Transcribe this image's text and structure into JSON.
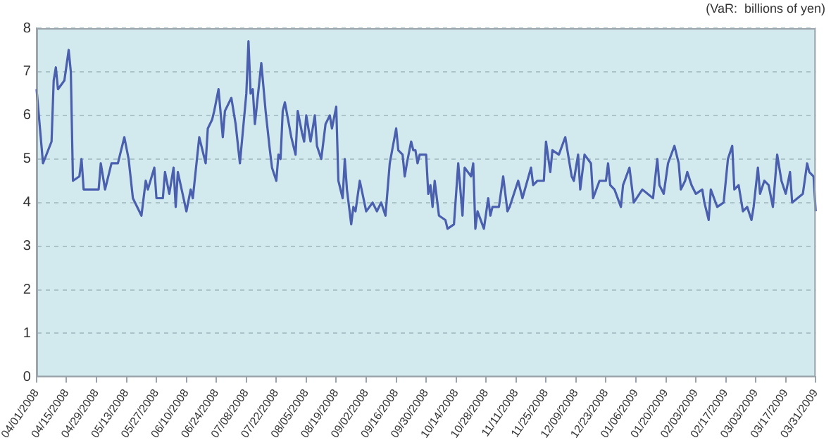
{
  "chart_data": {
    "type": "line",
    "ylabel": "(VaR:  billions of yen)",
    "x": [
      "2008-04-01",
      "2008-04-04",
      "2008-04-08",
      "2008-04-09",
      "2008-04-10",
      "2008-04-11",
      "2008-04-14",
      "2008-04-16",
      "2008-04-17",
      "2008-04-18",
      "2008-04-21",
      "2008-04-22",
      "2008-04-23",
      "2008-04-26",
      "2008-04-30",
      "2008-05-01",
      "2008-05-03",
      "2008-05-06",
      "2008-05-09",
      "2008-05-12",
      "2008-05-14",
      "2008-05-16",
      "2008-05-20",
      "2008-05-22",
      "2008-05-23",
      "2008-05-26",
      "2008-05-27",
      "2008-05-30",
      "2008-05-31",
      "2008-06-02",
      "2008-06-04",
      "2008-06-05",
      "2008-06-06",
      "2008-06-10",
      "2008-06-12",
      "2008-06-13",
      "2008-06-16",
      "2008-06-19",
      "2008-06-20",
      "2008-06-22",
      "2008-06-23",
      "2008-06-25",
      "2008-06-27",
      "2008-06-28",
      "2008-07-01",
      "2008-07-03",
      "2008-07-05",
      "2008-07-08",
      "2008-07-09",
      "2008-07-10",
      "2008-07-11",
      "2008-07-12",
      "2008-07-15",
      "2008-07-17",
      "2008-07-19",
      "2008-07-20",
      "2008-07-22",
      "2008-07-23",
      "2008-07-24",
      "2008-07-25",
      "2008-07-26",
      "2008-07-29",
      "2008-07-31",
      "2008-08-01",
      "2008-08-03",
      "2008-08-04",
      "2008-08-05",
      "2008-08-07",
      "2008-08-09",
      "2008-08-10",
      "2008-08-12",
      "2008-08-14",
      "2008-08-16",
      "2008-08-17",
      "2008-08-19",
      "2008-08-20",
      "2008-08-22",
      "2008-08-23",
      "2008-08-24",
      "2008-08-26",
      "2008-08-27",
      "2008-08-28",
      "2008-08-30",
      "2008-09-02",
      "2008-09-05",
      "2008-09-07",
      "2008-09-09",
      "2008-09-11",
      "2008-09-13",
      "2008-09-16",
      "2008-09-17",
      "2008-09-19",
      "2008-09-20",
      "2008-09-21",
      "2008-09-23",
      "2008-09-24",
      "2008-09-25",
      "2008-09-26",
      "2008-09-27",
      "2008-09-30",
      "2008-10-01",
      "2008-10-02",
      "2008-10-03",
      "2008-10-04",
      "2008-10-06",
      "2008-10-09",
      "2008-10-10",
      "2008-10-13",
      "2008-10-15",
      "2008-10-17",
      "2008-10-18",
      "2008-10-21",
      "2008-10-22",
      "2008-10-23",
      "2008-10-24",
      "2008-10-27",
      "2008-10-29",
      "2008-10-30",
      "2008-10-31",
      "2008-11-03",
      "2008-11-05",
      "2008-11-07",
      "2008-11-08",
      "2008-11-12",
      "2008-11-14",
      "2008-11-18",
      "2008-11-19",
      "2008-11-21",
      "2008-11-24",
      "2008-11-25",
      "2008-11-27",
      "2008-11-28",
      "2008-12-01",
      "2008-12-04",
      "2008-12-05",
      "2008-12-07",
      "2008-12-08",
      "2008-12-10",
      "2008-12-11",
      "2008-12-13",
      "2008-12-16",
      "2008-12-17",
      "2008-12-20",
      "2008-12-23",
      "2008-12-24",
      "2008-12-25",
      "2008-12-27",
      "2008-12-30",
      "2008-12-31",
      "2009-01-03",
      "2009-01-05",
      "2009-01-09",
      "2009-01-14",
      "2009-01-16",
      "2009-01-17",
      "2009-01-19",
      "2009-01-21",
      "2009-01-24",
      "2009-01-26",
      "2009-01-27",
      "2009-01-29",
      "2009-01-30",
      "2009-02-01",
      "2009-02-03",
      "2009-02-06",
      "2009-02-07",
      "2009-02-09",
      "2009-02-10",
      "2009-02-13",
      "2009-02-16",
      "2009-02-18",
      "2009-02-20",
      "2009-02-21",
      "2009-02-23",
      "2009-02-25",
      "2009-02-27",
      "2009-03-01",
      "2009-03-02",
      "2009-03-04",
      "2009-03-05",
      "2009-03-07",
      "2009-03-09",
      "2009-03-11",
      "2009-03-13",
      "2009-03-15",
      "2009-03-17",
      "2009-03-19",
      "2009-03-20",
      "2009-03-25",
      "2009-03-27",
      "2009-03-28",
      "2009-03-30",
      "2009-03-31"
    ],
    "series": [
      {
        "color": "#4a5fad",
        "values": [
          6.6,
          4.9,
          5.4,
          6.8,
          7.1,
          6.6,
          6.8,
          7.5,
          7.0,
          4.5,
          4.6,
          5.0,
          4.3,
          4.3,
          4.3,
          4.9,
          4.3,
          4.9,
          4.9,
          5.5,
          5.0,
          4.1,
          3.7,
          4.5,
          4.3,
          4.8,
          4.1,
          4.1,
          4.7,
          4.2,
          4.8,
          3.9,
          4.7,
          3.8,
          4.3,
          4.1,
          5.5,
          4.9,
          5.7,
          5.9,
          6.1,
          6.6,
          5.5,
          6.1,
          6.4,
          5.8,
          4.9,
          6.5,
          7.7,
          6.5,
          6.6,
          5.8,
          7.2,
          6.1,
          5.2,
          4.8,
          4.5,
          5.1,
          5.0,
          6.1,
          6.3,
          5.5,
          5.1,
          6.1,
          5.6,
          5.4,
          6.0,
          5.4,
          6.0,
          5.3,
          5.0,
          5.8,
          6.0,
          5.7,
          6.2,
          4.5,
          4.1,
          5.0,
          4.3,
          3.5,
          3.9,
          3.8,
          4.5,
          3.8,
          4.0,
          3.8,
          4.0,
          3.7,
          4.9,
          5.7,
          5.2,
          5.1,
          4.6,
          4.9,
          5.4,
          5.2,
          5.2,
          4.9,
          5.1,
          5.1,
          4.2,
          4.4,
          3.9,
          4.5,
          3.7,
          3.6,
          3.4,
          3.5,
          4.9,
          3.7,
          4.8,
          4.6,
          4.9,
          3.4,
          3.8,
          3.4,
          4.1,
          3.7,
          3.9,
          3.9,
          4.6,
          3.8,
          3.9,
          4.5,
          4.1,
          4.8,
          4.4,
          4.5,
          4.5,
          5.4,
          4.7,
          5.2,
          5.1,
          5.5,
          5.2,
          4.6,
          4.5,
          5.1,
          4.3,
          5.1,
          4.9,
          4.1,
          4.5,
          4.5,
          4.9,
          4.4,
          4.3,
          3.9,
          4.4,
          4.8,
          4.0,
          4.3,
          4.1,
          5.0,
          4.4,
          4.2,
          4.9,
          5.3,
          4.9,
          4.3,
          4.5,
          4.7,
          4.4,
          4.2,
          4.3,
          4.0,
          3.6,
          4.3,
          3.9,
          4.0,
          5.0,
          5.3,
          4.3,
          4.4,
          3.8,
          3.9,
          3.6,
          3.9,
          4.8,
          4.2,
          4.5,
          4.4,
          3.9,
          5.1,
          4.5,
          4.2,
          4.7,
          4.0,
          4.2,
          4.9,
          4.7,
          4.6,
          3.8
        ]
      }
    ],
    "xlim": [
      "2008-04-01",
      "2009-03-31"
    ],
    "xticks": [
      {
        "value": "2008-04-01",
        "label": "04/01/2008"
      },
      {
        "value": "2008-04-15",
        "label": "04/15/2008"
      },
      {
        "value": "2008-04-29",
        "label": "04/29/2008"
      },
      {
        "value": "2008-05-13",
        "label": "05/13/2008"
      },
      {
        "value": "2008-05-27",
        "label": "05/27/2008"
      },
      {
        "value": "2008-06-10",
        "label": "06/10/2008"
      },
      {
        "value": "2008-06-24",
        "label": "06/24/2008"
      },
      {
        "value": "2008-07-08",
        "label": "07/08/2008"
      },
      {
        "value": "2008-07-22",
        "label": "07/22/2008"
      },
      {
        "value": "2008-08-05",
        "label": "08/05/2008"
      },
      {
        "value": "2008-08-19",
        "label": "08/19/2008"
      },
      {
        "value": "2008-09-02",
        "label": "09/02/2008"
      },
      {
        "value": "2008-09-16",
        "label": "09/16/2008"
      },
      {
        "value": "2008-09-30",
        "label": "09/30/2008"
      },
      {
        "value": "2008-10-14",
        "label": "10/14/2008"
      },
      {
        "value": "2008-10-28",
        "label": "10/28/2008"
      },
      {
        "value": "2008-11-11",
        "label": "11/11/2008"
      },
      {
        "value": "2008-11-25",
        "label": "11/25/2008"
      },
      {
        "value": "2008-12-09",
        "label": "12/09/2008"
      },
      {
        "value": "2008-12-23",
        "label": "12/23/2008"
      },
      {
        "value": "2009-01-06",
        "label": "01/06/2009"
      },
      {
        "value": "2009-01-20",
        "label": "01/20/2009"
      },
      {
        "value": "2009-02-03",
        "label": "02/03/2009"
      },
      {
        "value": "2009-02-17",
        "label": "02/17/2009"
      },
      {
        "value": "2009-03-03",
        "label": "03/03/2009"
      },
      {
        "value": "2009-03-17",
        "label": "03/17/2009"
      },
      {
        "value": "2009-03-31",
        "label": "03/31/2009"
      }
    ],
    "ylim": [
      0,
      8
    ],
    "yticks": [
      0,
      1,
      2,
      3,
      4,
      5,
      6,
      7,
      8
    ],
    "grid": "y",
    "legend": false,
    "marker": "none",
    "line_style": "solid"
  }
}
